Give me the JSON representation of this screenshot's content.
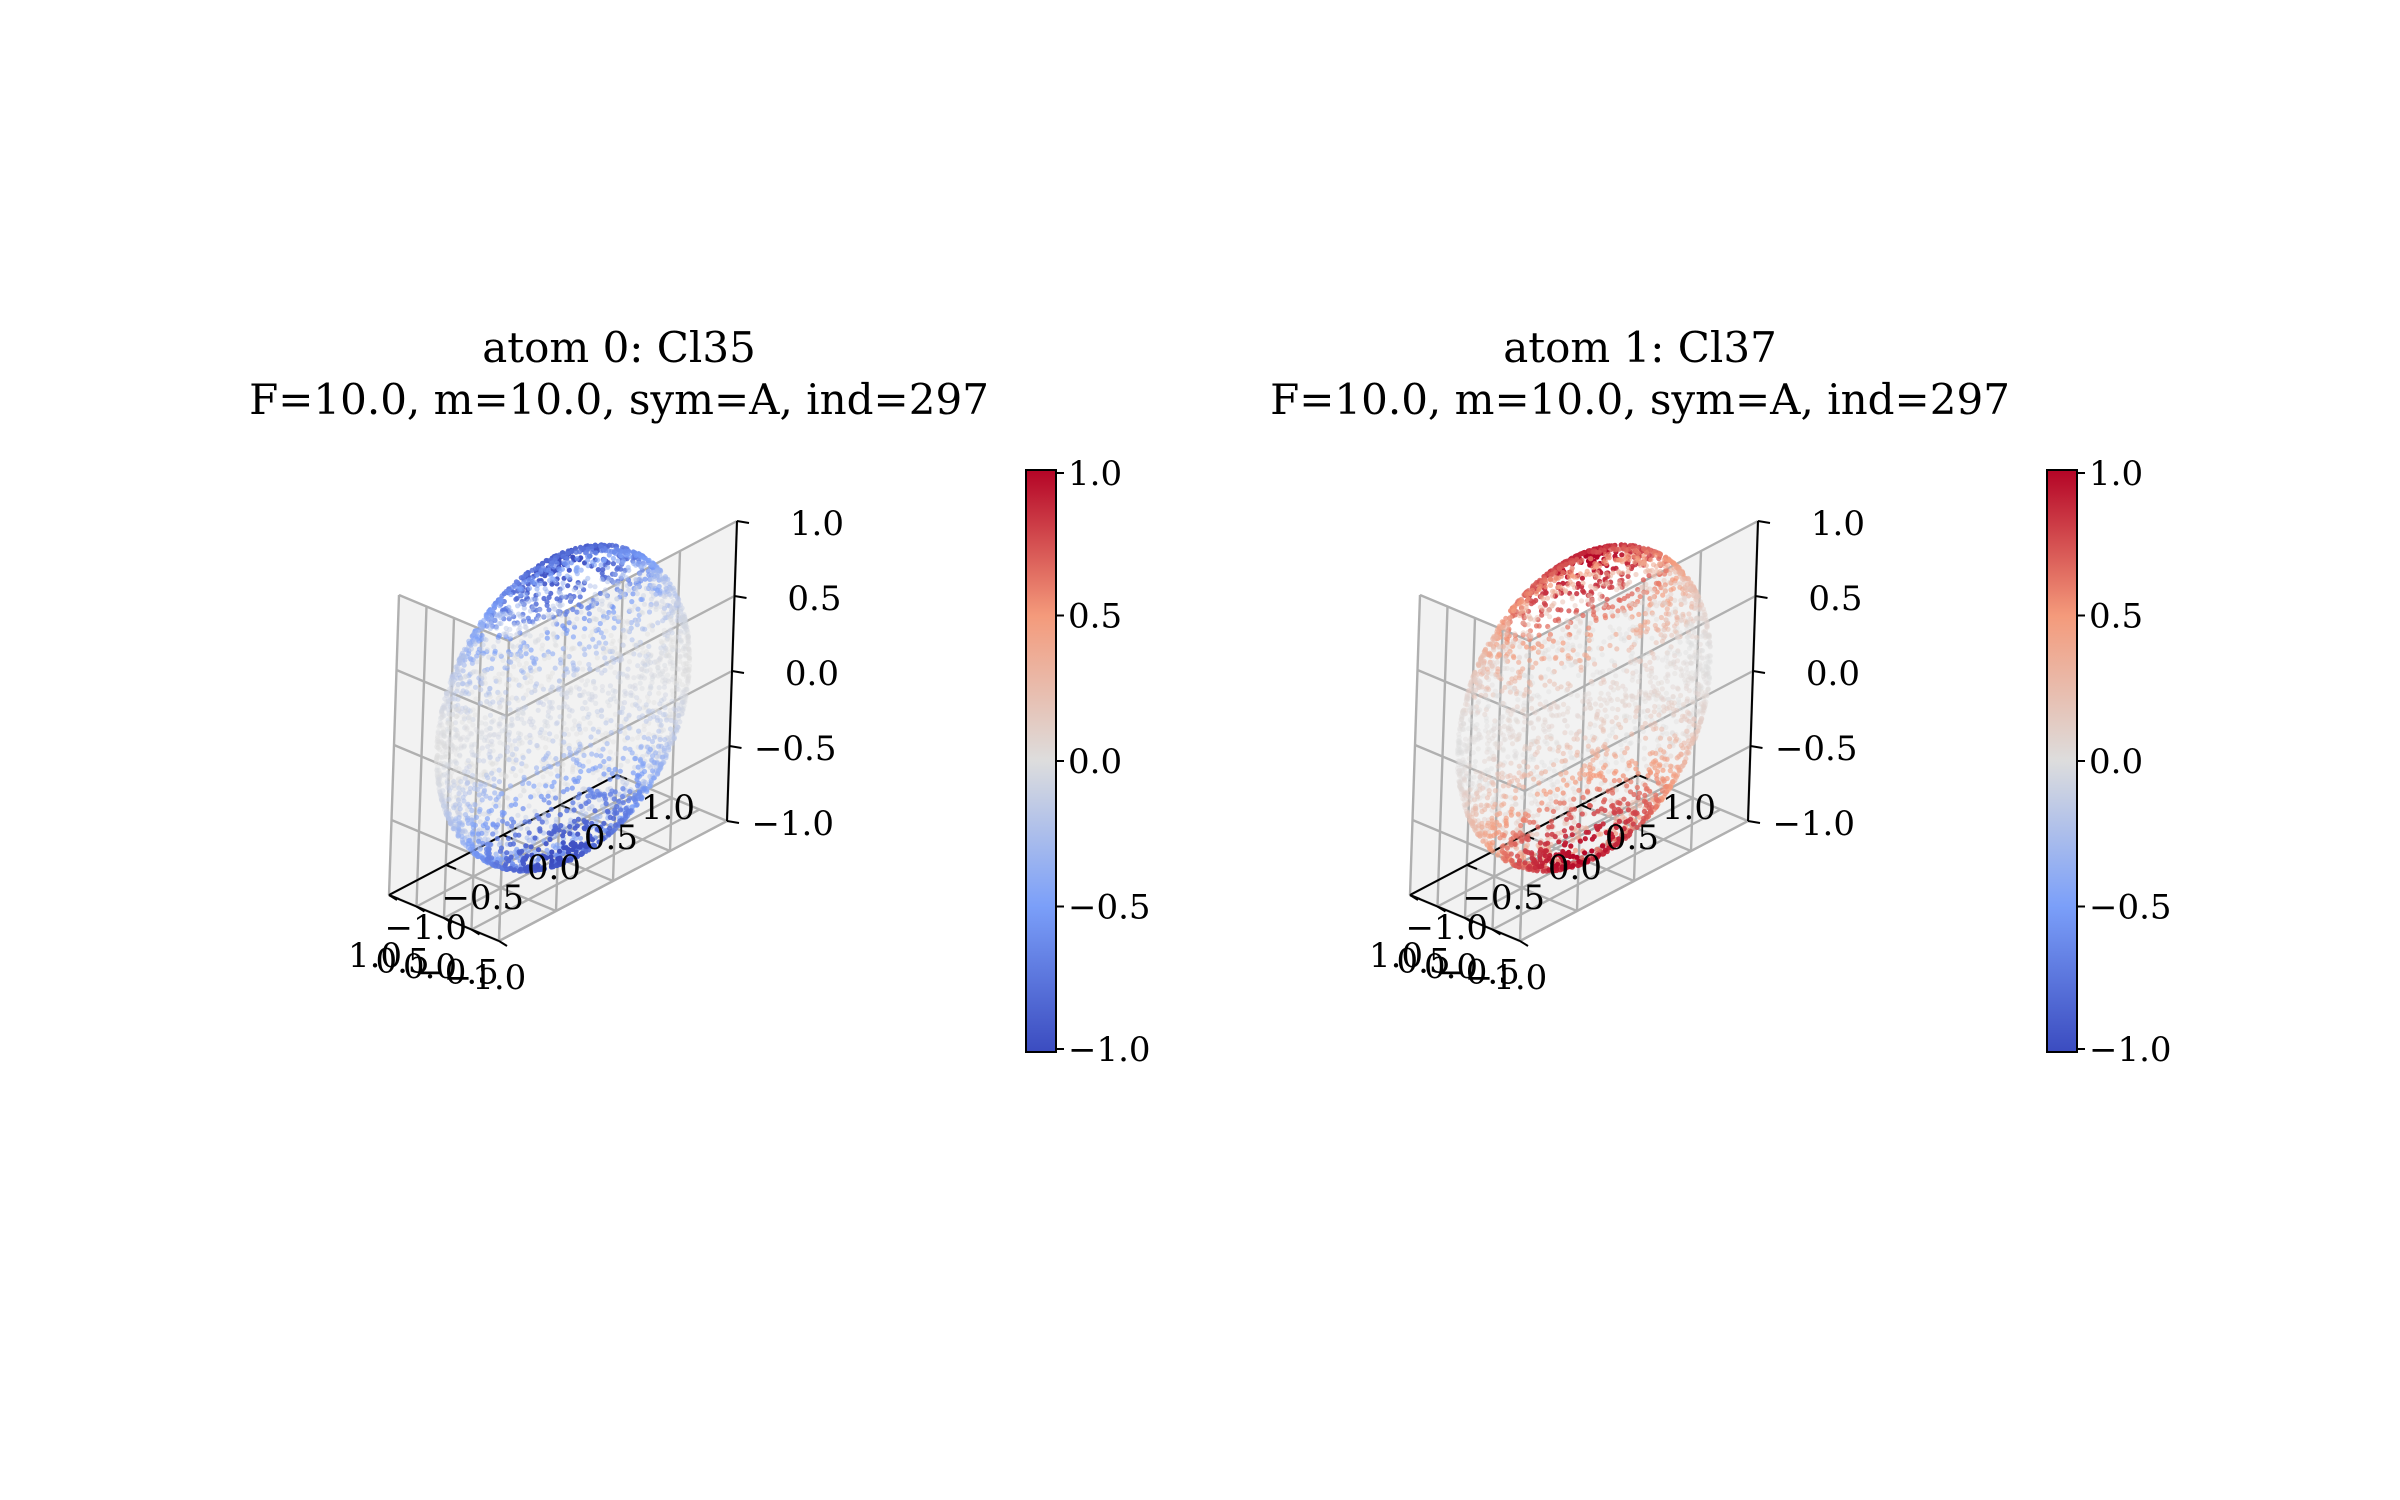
{
  "colors": {
    "pane": "#f2f2f2",
    "grid": "#b0b0b0",
    "axis": "#000000",
    "cmap_low": "#3b4cc0",
    "cmap_mid": "#dddddd",
    "cmap_high": "#b40426"
  },
  "chart_data": [
    {
      "type": "scatter3d",
      "title_line1": "atom 0: Cl35",
      "title_line2": "F=10.0, m=10.0, sym=A, ind=297",
      "x_ticks": [
        "−1.0",
        "−0.5",
        "0.0",
        "0.5",
        "1.0"
      ],
      "y_ticks": [
        "−1.0",
        "−0.5",
        "0.0",
        "0.5",
        "1.0"
      ],
      "z_ticks": [
        "−1.0",
        "−0.5",
        "0.0",
        "0.5",
        "1.0"
      ],
      "xlim": [
        -1,
        1
      ],
      "ylim": [
        -1,
        1
      ],
      "zlim": [
        -1,
        1
      ],
      "grid": true,
      "surface": "unit sphere",
      "color_function": "-z^2",
      "colorbar": {
        "range": [
          -1,
          1
        ],
        "ticks": [
          "−1.0",
          "−0.5",
          "0.0",
          "0.5",
          "1.0"
        ],
        "colormap": "coolwarm"
      }
    },
    {
      "type": "scatter3d",
      "title_line1": "atom 1: Cl37",
      "title_line2": "F=10.0, m=10.0, sym=A, ind=297",
      "x_ticks": [
        "−1.0",
        "−0.5",
        "0.0",
        "0.5",
        "1.0"
      ],
      "y_ticks": [
        "−1.0",
        "−0.5",
        "0.0",
        "0.5",
        "1.0"
      ],
      "z_ticks": [
        "−1.0",
        "−0.5",
        "0.0",
        "0.5",
        "1.0"
      ],
      "xlim": [
        -1,
        1
      ],
      "ylim": [
        -1,
        1
      ],
      "zlim": [
        -1,
        1
      ],
      "grid": true,
      "surface": "unit sphere",
      "color_function": "z^2",
      "colorbar": {
        "range": [
          -1,
          1
        ],
        "ticks": [
          "−1.0",
          "−0.5",
          "0.0",
          "0.5",
          "1.0"
        ],
        "colormap": "coolwarm"
      }
    }
  ]
}
